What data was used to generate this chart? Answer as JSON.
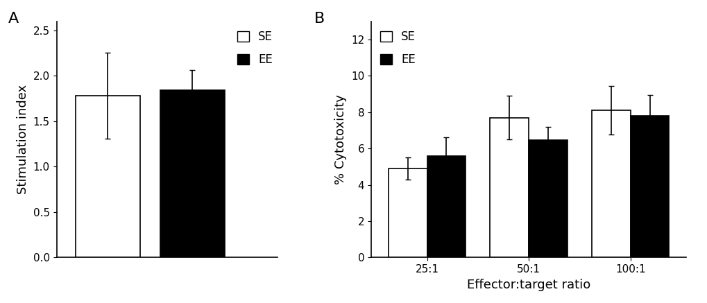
{
  "panel_A": {
    "label": "A",
    "values": [
      1.78,
      1.84
    ],
    "errors": [
      0.47,
      0.22
    ],
    "bar_colors": [
      "white",
      "black"
    ],
    "bar_edgecolors": [
      "black",
      "black"
    ],
    "ylabel": "Stimulation index",
    "ylim": [
      0,
      2.6
    ],
    "yticks": [
      0,
      0.5,
      1.0,
      1.5,
      2.0,
      2.5
    ],
    "bar_positions": [
      0.4,
      0.9
    ],
    "bar_width": 0.38,
    "xlim": [
      0.1,
      1.4
    ]
  },
  "panel_B": {
    "label": "B",
    "categories": [
      "25:1",
      "50:1",
      "100:1"
    ],
    "se_values": [
      4.9,
      7.7,
      8.1
    ],
    "ee_values": [
      5.6,
      6.45,
      7.8
    ],
    "se_errors": [
      0.6,
      1.2,
      1.35
    ],
    "ee_errors": [
      1.0,
      0.75,
      1.15
    ],
    "bar_colors": [
      "white",
      "black"
    ],
    "bar_edgecolors": [
      "black",
      "black"
    ],
    "ylabel": "% Cytotoxicity",
    "xlabel": "Effector:target ratio",
    "ylim": [
      0,
      13
    ],
    "yticks": [
      0,
      2,
      4,
      6,
      8,
      10,
      12
    ],
    "bar_width": 0.38
  },
  "capsize": 3,
  "label_fontsize": 13,
  "tick_fontsize": 11,
  "legend_fontsize": 12,
  "panel_label_fontsize": 16,
  "legend_labels": [
    "SE",
    "EE"
  ]
}
